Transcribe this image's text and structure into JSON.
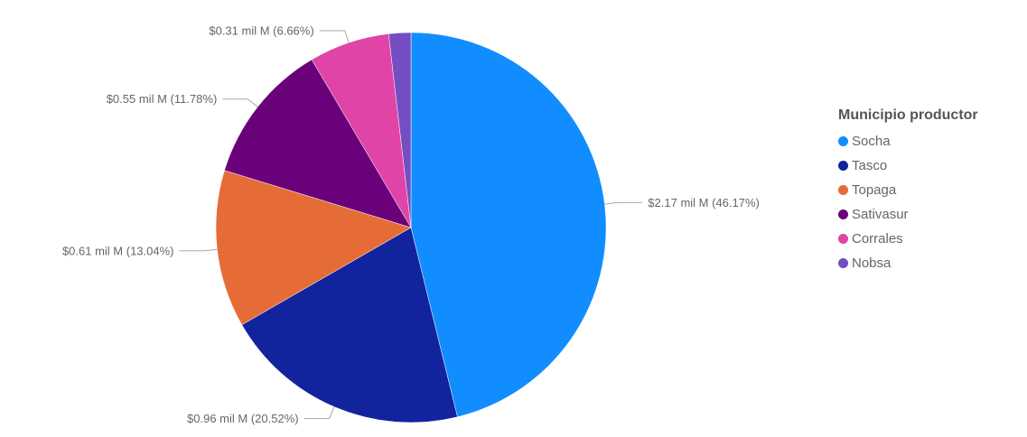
{
  "chart_data": {
    "type": "pie",
    "legend_title": "Municipio productor",
    "legend_position": "right",
    "start_angle_deg": 0,
    "direction": "clockwise",
    "slices": [
      {
        "name": "Socha",
        "value": 2.17,
        "percent": 46.17,
        "label": "$2.17 mil M (46.17%)",
        "color": "#118dff"
      },
      {
        "name": "Tasco",
        "value": 0.96,
        "percent": 20.52,
        "label": "$0.96 mil M (20.52%)",
        "color": "#12239e"
      },
      {
        "name": "Topaga",
        "value": 0.61,
        "percent": 13.04,
        "label": "$0.61 mil M (13.04%)",
        "color": "#e66c37"
      },
      {
        "name": "Sativasur",
        "value": 0.55,
        "percent": 11.78,
        "label": "$0.55 mil M (11.78%)",
        "color": "#6b007b"
      },
      {
        "name": "Corrales",
        "value": 0.31,
        "percent": 6.66,
        "label": "$0.31 mil M (6.66%)",
        "color": "#e044a7"
      },
      {
        "name": "Nobsa",
        "value": null,
        "percent": null,
        "label": "",
        "color": "#744ec2"
      }
    ]
  }
}
